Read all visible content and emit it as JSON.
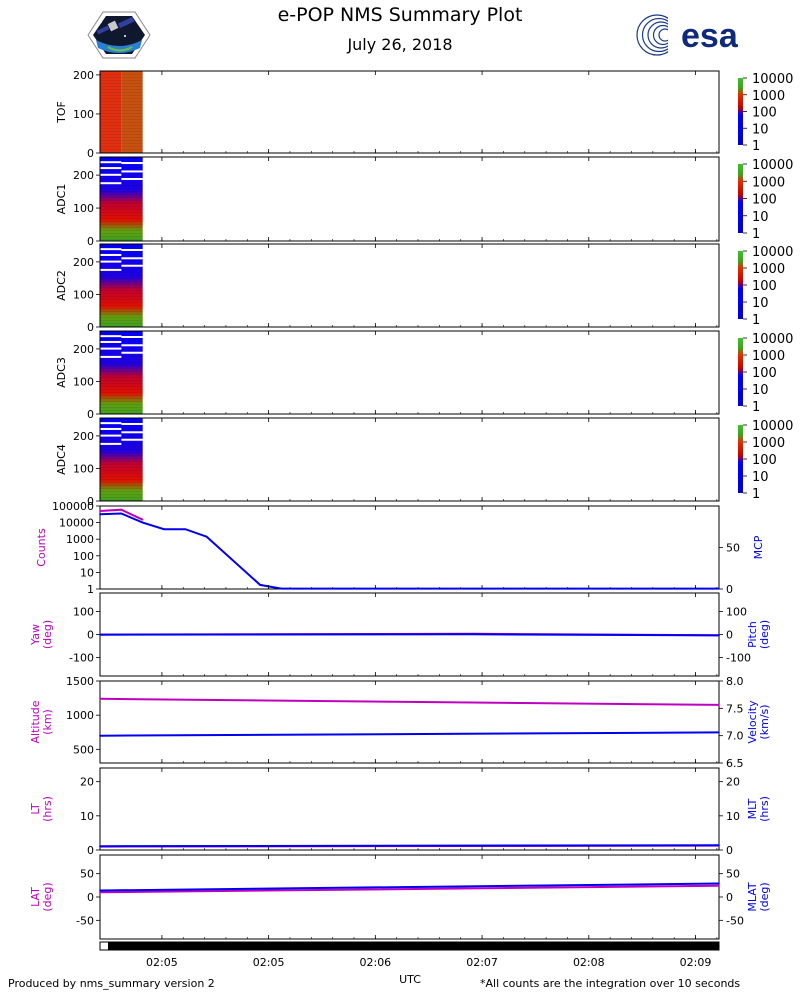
{
  "header": {
    "title": "e-POP NMS Summary Plot",
    "date": "July 26, 2018",
    "mission_logo": "e-POP mission patch",
    "esa_logo_text": "esa"
  },
  "footer": {
    "left": "Produced by nms_summary version 2",
    "right": "*All counts are the integration over 10 seconds"
  },
  "colors": {
    "magenta": "#c000c0",
    "blue": "#0000ee",
    "red": "#e00000",
    "green": "#40a020",
    "dark_blue": "#0000cc",
    "orange_red": "#d24010"
  },
  "chart_data": [
    {
      "type": "heatmap",
      "ylabel": "TOF",
      "ylim": [
        0,
        210
      ],
      "yticks": [
        0,
        100,
        200
      ],
      "colorbar": {
        "scale": "log",
        "ticks": [
          "1",
          "10",
          "100",
          "1000",
          "10000"
        ]
      },
      "data_columns": 2,
      "description_fill": "red/orange everywhere"
    },
    {
      "type": "heatmap",
      "ylabel": "ADC1",
      "ylim": [
        0,
        255
      ],
      "yticks": [
        0,
        100,
        200
      ],
      "colorbar": {
        "scale": "log",
        "ticks": [
          "1",
          "10",
          "100",
          "1000",
          "10000"
        ]
      }
    },
    {
      "type": "heatmap",
      "ylabel": "ADC2",
      "ylim": [
        0,
        255
      ],
      "yticks": [
        0,
        100,
        200
      ],
      "colorbar": {
        "scale": "log",
        "ticks": [
          "1",
          "10",
          "100",
          "1000",
          "10000"
        ]
      }
    },
    {
      "type": "heatmap",
      "ylabel": "ADC3",
      "ylim": [
        0,
        255
      ],
      "yticks": [
        0,
        100,
        200
      ],
      "colorbar": {
        "scale": "log",
        "ticks": [
          "1",
          "10",
          "100",
          "1000",
          "10000"
        ]
      }
    },
    {
      "type": "heatmap",
      "ylabel": "ADC4",
      "ylim": [
        0,
        255
      ],
      "yticks": [
        0,
        100,
        200
      ],
      "colorbar": {
        "scale": "log",
        "ticks": [
          "1",
          "10",
          "100",
          "1000",
          "10000"
        ]
      }
    },
    {
      "type": "line",
      "ylabel": "Counts",
      "ylabel2": "MCP",
      "yscale": "log",
      "ylim": [
        1,
        100000
      ],
      "yticks": [
        "1",
        "10",
        "100",
        "1000",
        "10000",
        "100000"
      ],
      "ylim2": [
        0,
        100
      ],
      "yticks2": [
        "0",
        "50"
      ],
      "series": [
        {
          "name": "Counts",
          "color": "magenta",
          "axis": "left",
          "x": [
            0.0,
            0.2,
            0.4
          ],
          "y": [
            50000,
            60000,
            15000
          ]
        },
        {
          "name": "MCP",
          "color": "blue",
          "axis": "right",
          "x": [
            0.0,
            0.2,
            0.4,
            0.6,
            0.8,
            1.0,
            1.5,
            1.7,
            5.8
          ],
          "y": [
            90,
            91,
            80,
            72,
            72,
            63,
            5,
            0.5,
            0.5
          ]
        }
      ]
    },
    {
      "type": "line",
      "ylabel": "Yaw\n(deg)",
      "ylabel2": "Pitch\n(deg)",
      "ylim": [
        -180,
        180
      ],
      "yticks": [
        "-100",
        "0",
        "100"
      ],
      "ylim2": [
        -180,
        180
      ],
      "yticks2": [
        "-100",
        "0",
        "100"
      ],
      "series": [
        {
          "name": "Yaw",
          "color": "magenta",
          "axis": "left",
          "x": [
            0.0,
            3.5,
            5.8
          ],
          "y": [
            0,
            3,
            -3
          ]
        },
        {
          "name": "Pitch",
          "color": "blue",
          "axis": "right",
          "x": [
            0.0,
            3.5,
            5.8
          ],
          "y": [
            -1,
            1,
            -4
          ]
        }
      ]
    },
    {
      "type": "line",
      "ylabel": "Altitude\n(km)",
      "ylabel2": "Velocity\n(km/s)",
      "ylim": [
        300,
        1500
      ],
      "yticks": [
        "500",
        "1000",
        "1500"
      ],
      "ylim2": [
        6.5,
        8.0
      ],
      "yticks2": [
        "6.5",
        "7.0",
        "7.5",
        "8.0"
      ],
      "series": [
        {
          "name": "Altitude",
          "color": "magenta",
          "axis": "left",
          "x": [
            0.0,
            5.8
          ],
          "y": [
            1240,
            1150
          ]
        },
        {
          "name": "Velocity",
          "color": "blue",
          "axis": "right",
          "x": [
            0.0,
            5.8
          ],
          "y": [
            7.0,
            7.06
          ]
        }
      ]
    },
    {
      "type": "line",
      "ylabel": "LT\n(hrs)",
      "ylabel2": "MLT\n(hrs)",
      "ylim": [
        0,
        24
      ],
      "yticks": [
        "0",
        "10",
        "20"
      ],
      "ylim2": [
        0,
        24
      ],
      "yticks2": [
        "0",
        "10",
        "20"
      ],
      "series": [
        {
          "name": "LT",
          "color": "magenta",
          "axis": "left",
          "x": [
            0.0,
            5.8
          ],
          "y": [
            1.0,
            1.3
          ]
        },
        {
          "name": "MLT",
          "color": "blue",
          "axis": "right",
          "x": [
            0.0,
            5.8
          ],
          "y": [
            1.1,
            1.4
          ]
        }
      ]
    },
    {
      "type": "line",
      "ylabel": "LAT\n(deg)",
      "ylabel2": "MLAT\n(deg)",
      "ylim": [
        -90,
        90
      ],
      "yticks": [
        "-50",
        "0",
        "50"
      ],
      "ylim2": [
        -90,
        90
      ],
      "yticks2": [
        "-50",
        "0",
        "50"
      ],
      "series": [
        {
          "name": "LAT",
          "color": "magenta",
          "axis": "left",
          "x": [
            0.0,
            5.8
          ],
          "y": [
            10,
            24
          ]
        },
        {
          "name": "MLAT",
          "color": "blue",
          "axis": "right",
          "x": [
            0.0,
            5.8
          ],
          "y": [
            14,
            29
          ]
        }
      ]
    }
  ],
  "x_axis": {
    "label": "UTC",
    "range": [
      0,
      5.8
    ],
    "ticks": [
      {
        "x": 0.58,
        "label": "02:05"
      },
      {
        "x": 1.58,
        "label": "02:05"
      },
      {
        "x": 2.58,
        "label": "02:06"
      },
      {
        "x": 3.58,
        "label": "02:07"
      },
      {
        "x": 4.58,
        "label": "02:08"
      },
      {
        "x": 5.58,
        "label": "02:09"
      }
    ],
    "heatmap_data_end": 0.4
  }
}
